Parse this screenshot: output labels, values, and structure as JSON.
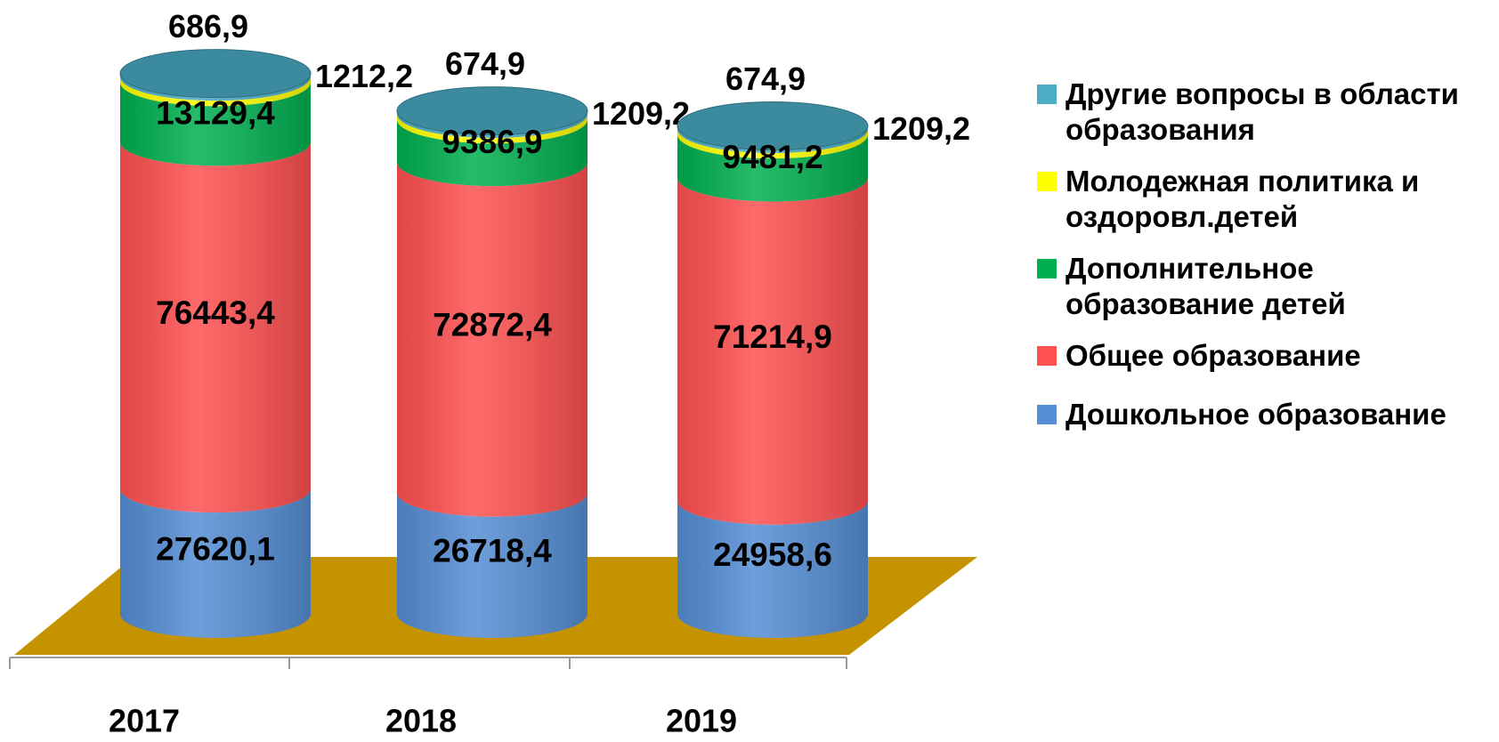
{
  "chart_data": {
    "type": "stacked-cylinder",
    "categories": [
      "2017",
      "2018",
      "2019"
    ],
    "series": [
      {
        "name": "Дошкольное образование",
        "color": "#558ed5",
        "values": [
          27620.1,
          26718.4,
          24958.6
        ],
        "value_labels": [
          "27620,1",
          "26718,4",
          "24958,6"
        ]
      },
      {
        "name": "Общее образование",
        "color": "#ff5050",
        "values": [
          76443.4,
          72872.4,
          71214.9
        ],
        "value_labels": [
          "76443,4",
          "72872,4",
          "71214,9"
        ]
      },
      {
        "name": "Дополнительное образование детей",
        "color": "#00b050",
        "values": [
          13129.4,
          9386.9,
          9481.2
        ],
        "value_labels": [
          "13129,4",
          "9386,9",
          "9481,2"
        ]
      },
      {
        "name": "Молодежная политика и оздоровл.детей",
        "color": "#ffff00",
        "values": [
          1212.2,
          1209.2,
          1209.2
        ],
        "value_labels": [
          "1212,2",
          "1209,2",
          "1209,2"
        ]
      },
      {
        "name": "Другие вопросы в области образования",
        "color": "#4bacc6",
        "values": [
          686.9,
          674.9,
          674.9
        ],
        "value_labels": [
          "686,9",
          "674,9",
          "674,9"
        ]
      }
    ],
    "floor_color": "#c69300"
  }
}
